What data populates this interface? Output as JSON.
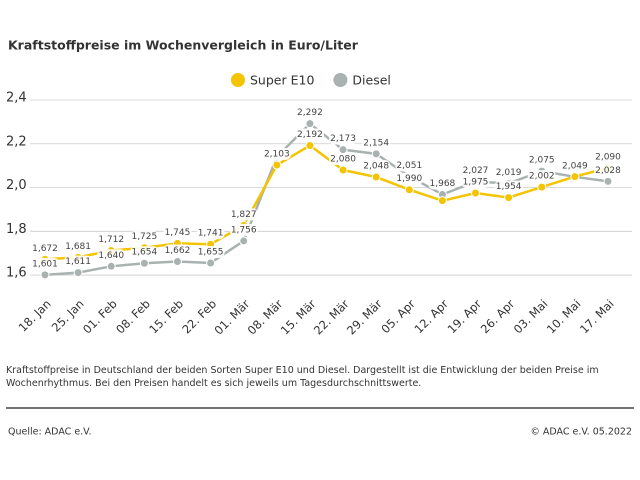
{
  "chart_data": {
    "type": "line",
    "title": "Kraftstoffpreise im Wochenvergleich in Euro/Liter",
    "categories": [
      "18. Jan",
      "25. Jan",
      "01. Feb",
      "08. Feb",
      "15. Feb",
      "22. Feb",
      "01. Mär",
      "08. Mär",
      "15. Mär",
      "22. Mär",
      "29. Mär",
      "05. Apr",
      "12. Apr",
      "19. Apr",
      "26. Apr",
      "03. Mai",
      "10. Mai",
      "17. Mai"
    ],
    "series": [
      {
        "name": "Super E10",
        "color": "#f5c400",
        "values": [
          1.672,
          1.681,
          1.712,
          1.725,
          1.745,
          1.741,
          1.827,
          2.103,
          2.192,
          2.08,
          2.048,
          1.99,
          1.94,
          1.975,
          1.954,
          2.002,
          2.05,
          2.09
        ],
        "value_labels": [
          "1,672",
          "1,681",
          "1,712",
          "1,725",
          "1,745",
          "1,741",
          "1,827",
          "2,103",
          "2,192",
          "2,080",
          "2,048",
          "1,990",
          null,
          "1,975",
          "1,954",
          "2,002",
          null,
          "2,090"
        ]
      },
      {
        "name": "Diesel",
        "color": "#a9b2b1",
        "values": [
          1.601,
          1.611,
          1.64,
          1.654,
          1.662,
          1.655,
          1.756,
          2.14,
          2.292,
          2.173,
          2.154,
          2.051,
          1.968,
          2.027,
          2.019,
          2.075,
          2.049,
          2.028
        ],
        "value_labels": [
          "1,601",
          "1,611",
          "1,640",
          "1,654",
          "1,662",
          "1,655",
          "1,756",
          null,
          "2,292",
          "2,173",
          "2,154",
          "2,051",
          "1,968",
          "2,027",
          "2,019",
          "2,075",
          "2,049",
          "2,028"
        ]
      }
    ],
    "ylim": [
      1.55,
      2.4
    ],
    "yticks": [
      {
        "value": 1.6,
        "label": "1,6"
      },
      {
        "value": 1.8,
        "label": "1,8"
      },
      {
        "value": 2.0,
        "label": "2,0"
      },
      {
        "value": 2.2,
        "label": "2,2"
      },
      {
        "value": 2.4,
        "label": "2,4"
      }
    ],
    "grid": true,
    "note": "Kraftstoffpreise in Deutschland der beiden Sorten Super E10 und Diesel. Dargestellt ist die Entwicklung der beiden Preise im Wochenrhythmus. Bei den Preisen handelt es sich jeweils um Tagesdurchschnittswerte.",
    "source": "Quelle: ADAC e.V.",
    "copyright": "© ADAC e.V. 05.2022"
  }
}
